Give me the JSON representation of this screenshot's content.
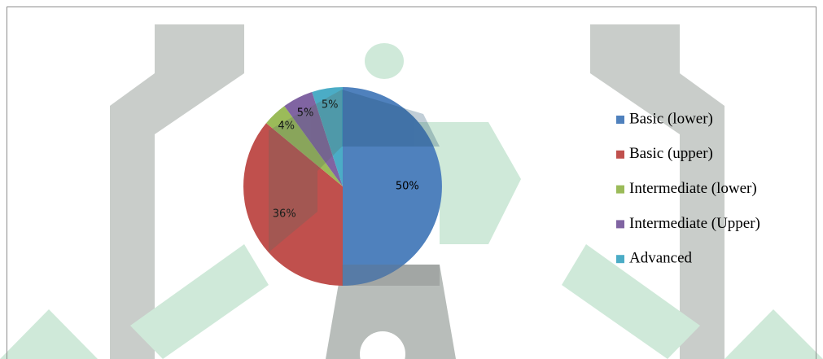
{
  "chart_data": {
    "type": "pie",
    "categories": [
      "Basic (lower)",
      "Basic (upper)",
      "Intermediate (lower)",
      "Intermediate (Upper)",
      "Advanced"
    ],
    "values": [
      50,
      36,
      4,
      5,
      5
    ],
    "value_labels": [
      "50%",
      "36%",
      "4%",
      "5%",
      "5%"
    ],
    "colors": [
      "#4f81bd",
      "#c0504d",
      "#9bbb59",
      "#8064a2",
      "#4bacc6"
    ],
    "legend": "right"
  }
}
